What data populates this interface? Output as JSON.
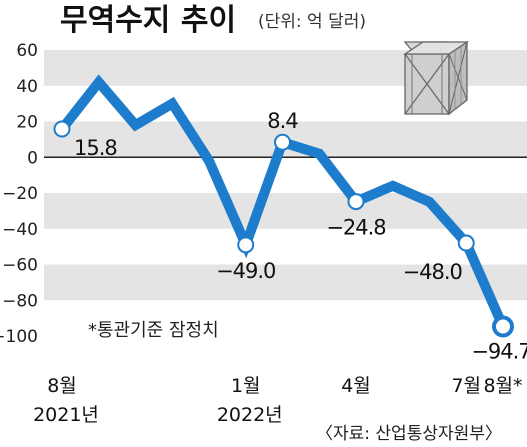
{
  "title": "무역수지 추이",
  "unit_label": "(단위: 억 달러)",
  "note": "*통관기준 잠정치",
  "source": "〈자료: 산업통상자원부〉",
  "colors": {
    "line": "#1d7ccc",
    "band": "#e4e4e4",
    "axis": "#222222"
  },
  "icon": "wooden-crate-icon",
  "chart_data": {
    "type": "line",
    "ylim": [
      -100,
      60
    ],
    "yticks": [
      60,
      40,
      20,
      0,
      -20,
      -40,
      -60,
      -80,
      -100
    ],
    "grid": "alternating-bands",
    "series": [
      {
        "values": [
          15.8,
          42,
          18,
          30,
          -2,
          -49.0,
          8.4,
          2,
          -24.8,
          -16,
          -25,
          -48.0,
          -94.7
        ]
      }
    ],
    "x_labels": [
      {
        "index": 0,
        "month": "8월",
        "year": "2021년"
      },
      {
        "index": 5,
        "month": "1월",
        "year": "2022년"
      },
      {
        "index": 8,
        "month": "4월"
      },
      {
        "index": 11,
        "month": "7월"
      },
      {
        "index": 12,
        "month": "8월*"
      }
    ],
    "data_labels": [
      {
        "index": 0,
        "text": "15.8"
      },
      {
        "index": 5,
        "text": "-49.0"
      },
      {
        "index": 6,
        "text": "8.4"
      },
      {
        "index": 8,
        "text": "-24.8"
      },
      {
        "index": 11,
        "text": "-48.0"
      },
      {
        "index": 12,
        "text": "-94.7"
      }
    ]
  }
}
